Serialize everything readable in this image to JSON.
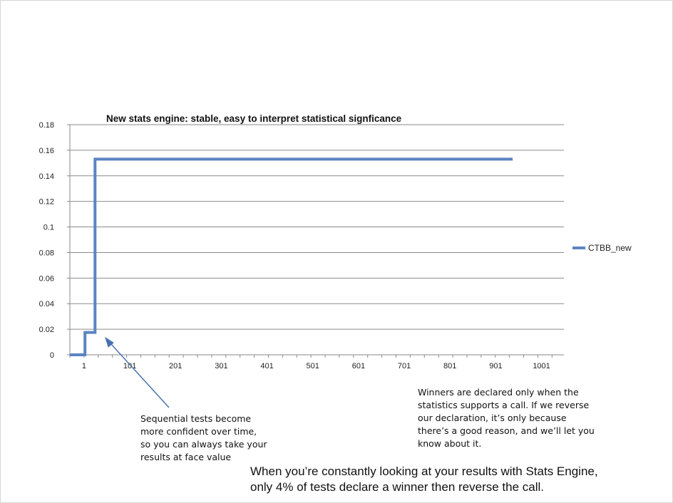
{
  "chart_data": {
    "type": "line",
    "title": "New stats engine: stable, easy to interpret statistical signficance",
    "xlabel": "",
    "ylabel": "",
    "xlim": [
      -30,
      1050
    ],
    "ylim": [
      0,
      0.18
    ],
    "x_ticks": [
      "1",
      "101",
      "201",
      "301",
      "401",
      "501",
      "601",
      "701",
      "801",
      "901",
      "1001"
    ],
    "y_ticks": [
      "0",
      "0.02",
      "0.04",
      "0.06",
      "0.08",
      "0.1",
      "0.12",
      "0.14",
      "0.16",
      "0.18"
    ],
    "grid": true,
    "legend_position": "right",
    "series": [
      {
        "name": "CTBB_new",
        "color": "#5b84c2",
        "points": [
          [
            -30,
            0
          ],
          [
            3,
            0
          ],
          [
            3,
            0.0175
          ],
          [
            25,
            0.0175
          ],
          [
            25,
            0.153
          ],
          [
            938,
            0.153
          ]
        ]
      }
    ]
  },
  "annotations": {
    "left_note": [
      "Sequential tests become",
      "more confident over time,",
      "so you can always take your",
      "results at face value"
    ],
    "right_note": [
      "Winners are declared only when the",
      "statistics supports a call. If we reverse",
      "our declaration, it’s only because",
      "there’s a good reason, and we’ll let you",
      "know about it."
    ],
    "arrow_color": "#4a72b0"
  },
  "footer": {
    "line1": "When you’re constantly looking at your results with Stats Engine,",
    "line2": "only 4% of tests declare a winner then reverse the call."
  }
}
